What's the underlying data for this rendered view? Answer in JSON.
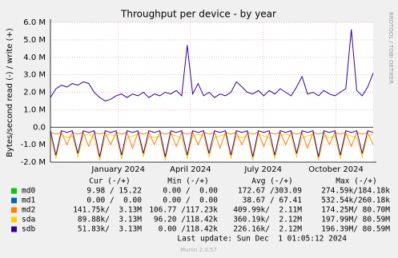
{
  "chart_data": {
    "type": "line",
    "title": "Throughput per device - by year",
    "y_label": "Bytes/second read (-) / write (+)",
    "side_text": "RRDTOOL / TOBI OETIKER",
    "xlim": [
      0,
      59
    ],
    "xticks": [
      {
        "value": 12.4,
        "label": "January 2024"
      },
      {
        "value": 25.6,
        "label": "April 2024"
      },
      {
        "value": 38.9,
        "label": "July 2024"
      },
      {
        "value": 52.2,
        "label": "October 2024"
      }
    ],
    "ylim": [
      -2000000.0,
      6000000.0
    ],
    "yticks": [
      {
        "value": 6000000.0,
        "label": "6.0 M"
      },
      {
        "value": 5000000.0,
        "label": "5.0 M"
      },
      {
        "value": 4000000.0,
        "label": "4.0 M"
      },
      {
        "value": 3000000.0,
        "label": "3.0 M"
      },
      {
        "value": 2000000.0,
        "label": "2.0 M"
      },
      {
        "value": 1000000.0,
        "label": "1.0 M"
      },
      {
        "value": 0,
        "label": "0.0"
      },
      {
        "value": -1000000.0,
        "label": "-1.0 M"
      },
      {
        "value": -2000000.0,
        "label": "-2.0 M"
      }
    ],
    "grid": true,
    "series": [
      {
        "name": "sda",
        "color": "#ffcc00",
        "values": [
          -500000.0,
          -1800000.0,
          -400000.0,
          -600000.0,
          -500000.0,
          -1700000.0,
          -500000.0,
          -400000.0,
          -600000.0,
          -1900000.0,
          -500000.0,
          -400000.0,
          -500000.0,
          -1800000.0,
          -600000.0,
          -500000.0,
          -400000.0,
          -1700000.0,
          -500000.0,
          -600000.0,
          -500000.0,
          -1900000.0,
          -400000.0,
          -500000.0,
          -600000.0,
          -1800000.0,
          -500000.0,
          -400000.0,
          -500000.0,
          -1700000.0,
          -600000.0,
          -500000.0,
          -400000.0,
          -1800000.0,
          -500000.0,
          -600000.0,
          -500000.0,
          -1900000.0,
          -400000.0,
          -500000.0,
          -600000.0,
          -1800000.0,
          -500000.0,
          -400000.0,
          -500000.0,
          -1700000.0,
          -600000.0,
          -500000.0,
          -400000.0,
          -1900000.0,
          -500000.0,
          -600000.0,
          -500000.0,
          -1800000.0,
          -400000.0,
          -500000.0,
          -600000.0,
          -1700000.0,
          -500000.0,
          -400000.0
        ]
      },
      {
        "name": "md2",
        "color": "#ff8000",
        "values": [
          -300000.0,
          -400000.0,
          -300000.0,
          -1000000.0,
          -300000.0,
          -400000.0,
          -300000.0,
          -1100000.0,
          -300000.0,
          -400000.0,
          -300000.0,
          -1000000.0,
          -300000.0,
          -400000.0,
          -300000.0,
          -1200000.0,
          -300000.0,
          -400000.0,
          -300000.0,
          -1000000.0,
          -300000.0,
          -400000.0,
          -300000.0,
          -1100000.0,
          -300000.0,
          -400000.0,
          -300000.0,
          -1000000.0,
          -300000.0,
          -400000.0,
          -300000.0,
          -1200000.0,
          -300000.0,
          -400000.0,
          -300000.0,
          -1000000.0,
          -300000.0,
          -400000.0,
          -300000.0,
          -1100000.0,
          -300000.0,
          -400000.0,
          -300000.0,
          -1000000.0,
          -300000.0,
          -400000.0,
          -300000.0,
          -1200000.0,
          -300000.0,
          -400000.0,
          -300000.0,
          -1000000.0,
          -300000.0,
          -400000.0,
          -300000.0,
          -1100000.0,
          -300000.0,
          -400000.0,
          -300000.0,
          -1000000.0
        ]
      },
      {
        "name": "sdb",
        "color": "#330099",
        "values": [
          1700000.0,
          2200000.0,
          2400000.0,
          2300000.0,
          2500000.0,
          2400000.0,
          2600000.0,
          2500000.0,
          2000000.0,
          1700000.0,
          1500000.0,
          1600000.0,
          1800000.0,
          1900000.0,
          1700000.0,
          1900000.0,
          1800000.0,
          2000000.0,
          1700000.0,
          1900000.0,
          1800000.0,
          2000000.0,
          1900000.0,
          2100000.0,
          1800000.0,
          4700000.0,
          1900000.0,
          2500000.0,
          1800000.0,
          2000000.0,
          1700000.0,
          1900000.0,
          1800000.0,
          2000000.0,
          2600000.0,
          2300000.0,
          2000000.0,
          1900000.0,
          2100000.0,
          1800000.0,
          2100000.0,
          1900000.0,
          2200000.0,
          2000000.0,
          1800000.0,
          2300000.0,
          2900000.0,
          1900000.0,
          2000000.0,
          1800000.0,
          2100000.0,
          1900000.0,
          1800000.0,
          2000000.0,
          2200000.0,
          5600000.0,
          2100000.0,
          1800000.0,
          2300000.0,
          3100000.0
        ],
        "read_values": [
          -200000.0,
          -1600000.0,
          -200000.0,
          -300000.0,
          -200000.0,
          -1500000.0,
          -200000.0,
          -300000.0,
          -200000.0,
          -1700000.0,
          -200000.0,
          -300000.0,
          -200000.0,
          -1600000.0,
          -200000.0,
          -300000.0,
          -200000.0,
          -1500000.0,
          -200000.0,
          -300000.0,
          -200000.0,
          -1700000.0,
          -200000.0,
          -300000.0,
          -200000.0,
          -1600000.0,
          -200000.0,
          -300000.0,
          -200000.0,
          -1500000.0,
          -200000.0,
          -300000.0,
          -200000.0,
          -1600000.0,
          -200000.0,
          -300000.0,
          -200000.0,
          -1700000.0,
          -200000.0,
          -300000.0,
          -200000.0,
          -1600000.0,
          -200000.0,
          -300000.0,
          -200000.0,
          -1500000.0,
          -200000.0,
          -300000.0,
          -200000.0,
          -1700000.0,
          -200000.0,
          -300000.0,
          -200000.0,
          -1600000.0,
          -200000.0,
          -300000.0,
          -200000.0,
          -1500000.0,
          -200000.0,
          -300000.0
        ]
      }
    ],
    "legend_headers": [
      "Cur (-/+)",
      "Min (-/+)",
      "Avg (-/+)",
      "Max (-/+)"
    ],
    "legend": [
      {
        "name": "md0",
        "color": "#00cc00",
        "cells": [
          "9.98 / 15.22",
          "0.00 /  0.00",
          "172.67 /303.09",
          "274.59k/184.18k"
        ]
      },
      {
        "name": "md1",
        "color": "#0066b3",
        "cells": [
          "0.00 /  0.00",
          "0.00 /  0.00",
          "38.67 / 67.41",
          "532.54k/260.18k"
        ]
      },
      {
        "name": "md2",
        "color": "#ff8000",
        "cells": [
          "141.75k/  3.13M",
          "106.77 /117.23k",
          "409.99k/  2.11M",
          "174.25M/ 80.70M"
        ]
      },
      {
        "name": "sda",
        "color": "#ffcc00",
        "cells": [
          "89.88k/  3.13M",
          "96.20 /118.42k",
          "360.19k/  2.12M",
          "197.99M/ 80.59M"
        ]
      },
      {
        "name": "sdb",
        "color": "#330099",
        "cells": [
          "51.83k/  3.13M",
          "0.00 /118.42k",
          "226.16k/  2.12M",
          "196.39M/ 80.59M"
        ]
      }
    ],
    "last_update": "Last update: Sun Dec  1 01:05:12 2024",
    "footer": "Munin 2.0.57"
  }
}
